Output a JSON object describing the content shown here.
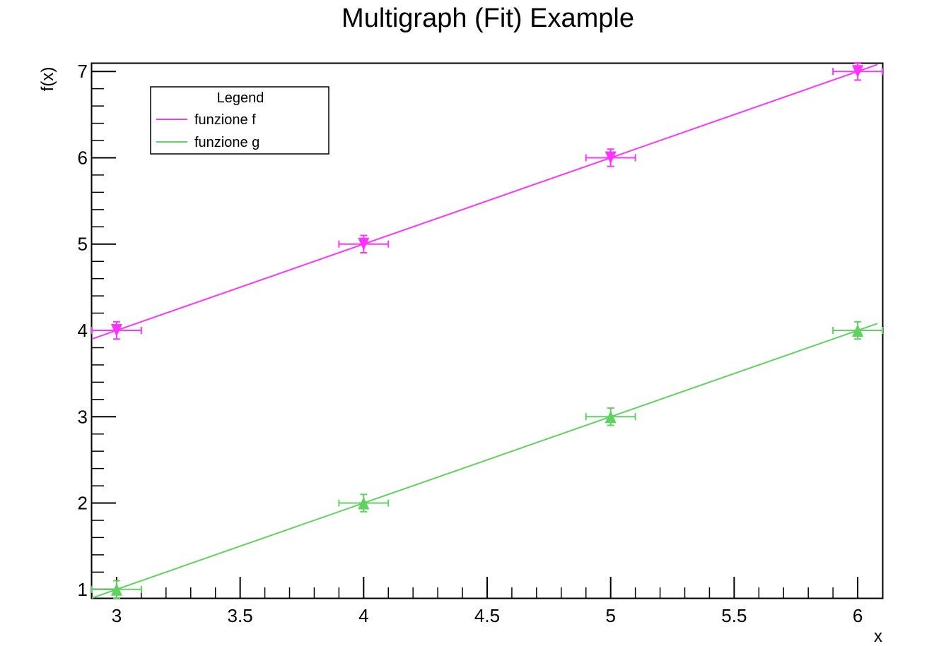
{
  "chart_data": {
    "type": "scatter",
    "title": "Multigraph (Fit) Example",
    "xlabel": "x",
    "ylabel": "f(x)",
    "xlim": [
      2.9,
      6.1
    ],
    "ylim": [
      0.9,
      7.1
    ],
    "x_ticks": [
      3,
      3.5,
      4,
      4.5,
      5,
      5.5,
      6
    ],
    "y_ticks": [
      1,
      2,
      3,
      4,
      5,
      6,
      7
    ],
    "x_tick_labels": [
      "3",
      "3.5",
      "4",
      "4.5",
      "5",
      "5.5",
      "6"
    ],
    "y_tick_labels": [
      "1",
      "2",
      "3",
      "4",
      "5",
      "6",
      "7"
    ],
    "grid": false,
    "legend": {
      "title": "Legend",
      "placement": "top-left"
    },
    "series": [
      {
        "name": "funzione f",
        "color": "#ff33ff",
        "marker": "triangle-down",
        "x": [
          3,
          4,
          5,
          6
        ],
        "y": [
          4,
          5,
          6,
          7
        ],
        "x_err": [
          0.1,
          0.1,
          0.1,
          0.1
        ],
        "y_err": [
          0.1,
          0.1,
          0.1,
          0.1
        ],
        "fit": {
          "slope": 1,
          "intercept": 1
        }
      },
      {
        "name": "funzione g",
        "color": "#5fd35f",
        "marker": "triangle-up",
        "x": [
          3,
          4,
          5,
          6
        ],
        "y": [
          1,
          2,
          3,
          4
        ],
        "x_err": [
          0.1,
          0.1,
          0.1,
          0.1
        ],
        "y_err": [
          0.1,
          0.1,
          0.1,
          0.1
        ],
        "fit": {
          "slope": 1,
          "intercept": -2
        }
      }
    ]
  }
}
